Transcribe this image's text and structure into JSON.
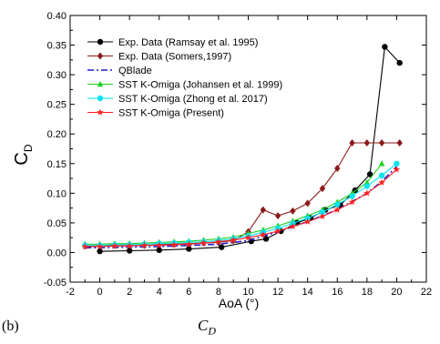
{
  "caption": {
    "label": "(b)",
    "title": "C_D"
  },
  "chart_data": {
    "type": "line",
    "xlabel": "AoA (°)",
    "ylabel": "C_D",
    "xlim": [
      -2,
      22
    ],
    "ylim": [
      -0.05,
      0.4
    ],
    "xticks": [
      -2,
      0,
      2,
      4,
      6,
      8,
      10,
      12,
      14,
      16,
      18,
      20,
      22
    ],
    "yticks": [
      -0.05,
      0.0,
      0.05,
      0.1,
      0.15,
      0.2,
      0.25,
      0.3,
      0.35,
      0.4
    ],
    "xtick_labels": [
      "-2",
      "0",
      "2",
      "4",
      "6",
      "8",
      "10",
      "12",
      "14",
      "16",
      "18",
      "20",
      "22"
    ],
    "ytick_labels": [
      "-0.05",
      "0.00",
      "0.05",
      "0.10",
      "0.15",
      "0.20",
      "0.25",
      "0.30",
      "0.35",
      "0.40"
    ],
    "grid": false,
    "legend_position": "top-left",
    "series": [
      {
        "name": "Exp. Data (Ramsay et al. 1995)",
        "color": "#000000",
        "marker": "circle",
        "dash": "solid",
        "x": [
          0,
          2,
          4,
          6,
          8.2,
          10.2,
          11.2,
          12.2,
          13.3,
          14.2,
          15.2,
          16.2,
          17.2,
          18.2,
          19.2,
          20.2
        ],
        "y": [
          0.002,
          0.003,
          0.004,
          0.006,
          0.009,
          0.019,
          0.023,
          0.036,
          0.05,
          0.058,
          0.072,
          0.08,
          0.105,
          0.132,
          0.347,
          0.32
        ]
      },
      {
        "name": "Exp. Data (Somers,1997)",
        "color": "#8b1a1a",
        "marker": "diamond",
        "dash": "solid",
        "x": [
          -1,
          0,
          1,
          2,
          3,
          4,
          5,
          6,
          7,
          8,
          9,
          10,
          11,
          12,
          13,
          14,
          15,
          16,
          17,
          18,
          19,
          20.2
        ],
        "y": [
          0.011,
          0.012,
          0.012,
          0.012,
          0.012,
          0.013,
          0.014,
          0.015,
          0.016,
          0.017,
          0.02,
          0.035,
          0.072,
          0.062,
          0.07,
          0.083,
          0.108,
          0.142,
          0.185,
          0.185,
          0.185,
          0.185
        ]
      },
      {
        "name": "QBlade",
        "color": "#1f1fcf",
        "marker": "none",
        "dash": "dashdot",
        "x": [
          -1,
          0,
          2,
          4,
          6,
          8,
          10,
          12,
          14,
          16,
          17,
          18,
          19,
          20
        ],
        "y": [
          0.008,
          0.008,
          0.009,
          0.01,
          0.012,
          0.014,
          0.02,
          0.035,
          0.052,
          0.072,
          0.086,
          0.1,
          0.12,
          0.145
        ]
      },
      {
        "name": "SST K-Omiga (Johansen et al. 1999)",
        "color": "#1fcf1f",
        "marker": "triangle",
        "dash": "solid",
        "x": [
          -1,
          0,
          1,
          2,
          3,
          4,
          5,
          6,
          7,
          8,
          9,
          10,
          11,
          12,
          13,
          14,
          15,
          16,
          17,
          18,
          19
        ],
        "y": [
          0.014,
          0.014,
          0.015,
          0.015,
          0.016,
          0.017,
          0.018,
          0.019,
          0.021,
          0.023,
          0.026,
          0.032,
          0.038,
          0.045,
          0.053,
          0.062,
          0.072,
          0.085,
          0.1,
          0.118,
          0.15
        ]
      },
      {
        "name": "SST K-Omiga (Zhong et al. 2017)",
        "color": "#00e5ee",
        "marker": "circle",
        "dash": "solid",
        "x": [
          -1,
          0,
          1,
          2,
          3,
          4,
          5,
          6,
          7,
          8,
          9,
          10,
          11,
          12,
          13,
          14,
          15,
          16,
          17,
          18,
          19,
          20
        ],
        "y": [
          0.012,
          0.012,
          0.013,
          0.013,
          0.014,
          0.015,
          0.016,
          0.017,
          0.018,
          0.02,
          0.023,
          0.028,
          0.034,
          0.041,
          0.049,
          0.058,
          0.068,
          0.081,
          0.095,
          0.112,
          0.13,
          0.15
        ]
      },
      {
        "name": "SST K-Omiga (Present)",
        "color": "#ff2020",
        "marker": "star",
        "dash": "solid",
        "x": [
          -1,
          0,
          1,
          2,
          3,
          4,
          5,
          6,
          7,
          8,
          9,
          10,
          11,
          12,
          13,
          14,
          15,
          16,
          17,
          18,
          19,
          20
        ],
        "y": [
          0.01,
          0.01,
          0.011,
          0.011,
          0.012,
          0.012,
          0.013,
          0.014,
          0.016,
          0.018,
          0.021,
          0.025,
          0.03,
          0.036,
          0.044,
          0.052,
          0.061,
          0.072,
          0.085,
          0.1,
          0.118,
          0.14
        ]
      }
    ]
  }
}
